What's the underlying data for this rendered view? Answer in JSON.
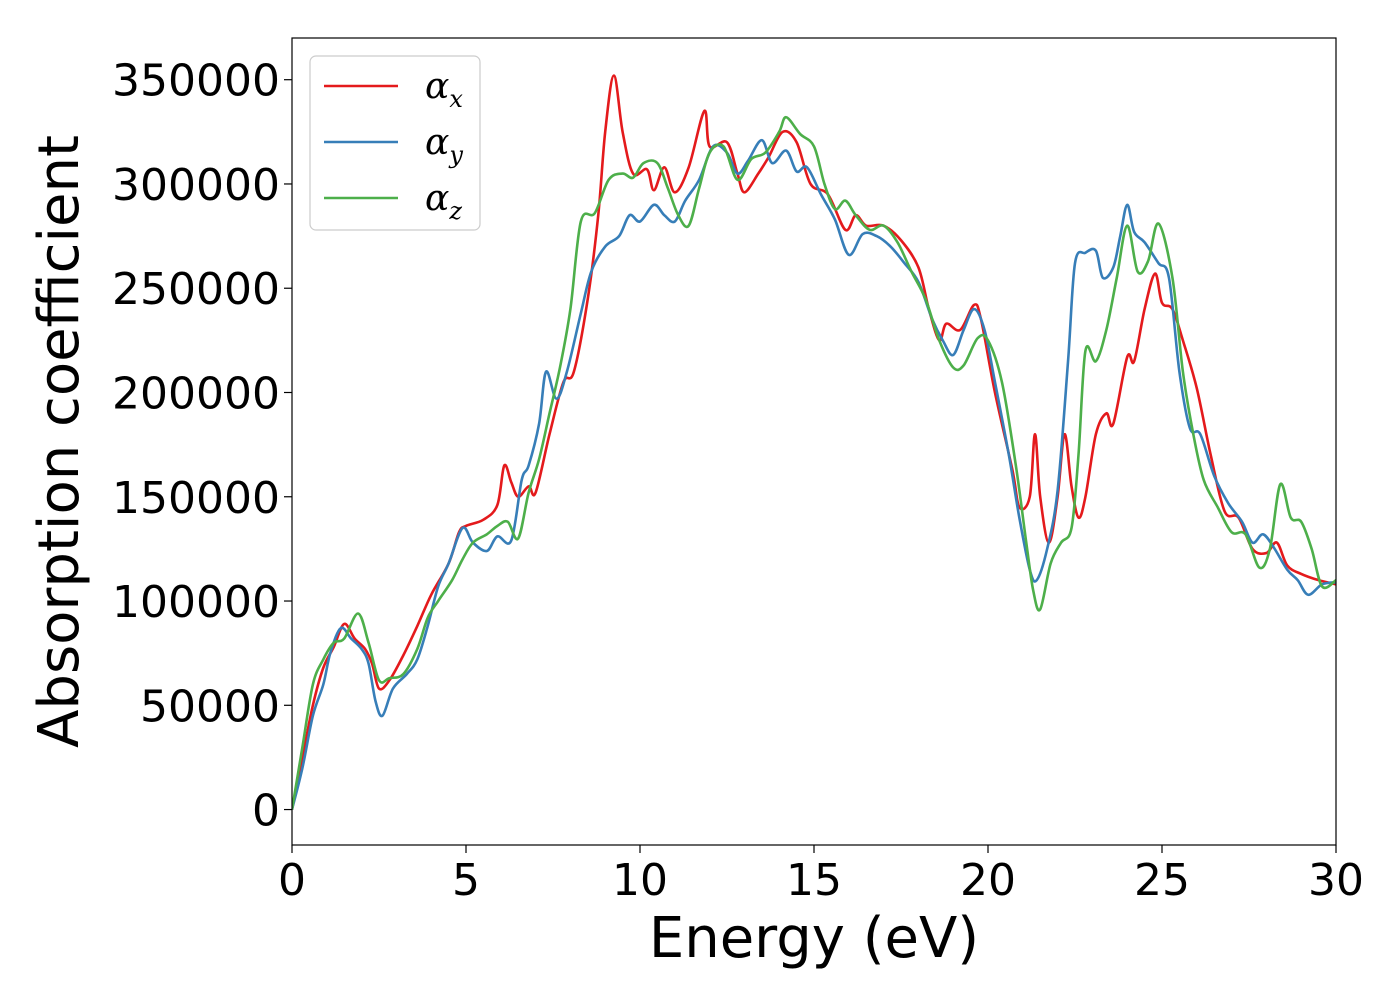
{
  "chart_data": {
    "type": "line",
    "xlabel": "Energy (eV)",
    "ylabel": "Absorption coefficient",
    "xlim": [
      0,
      30
    ],
    "ylim": [
      -17000,
      370000
    ],
    "x_ticks": [
      0,
      5,
      10,
      15,
      20,
      25,
      30
    ],
    "x_tick_labels": [
      "0",
      "5",
      "10",
      "15",
      "20",
      "25",
      "30"
    ],
    "y_ticks": [
      0,
      50000,
      100000,
      150000,
      200000,
      250000,
      300000,
      350000
    ],
    "y_tick_labels": [
      "0",
      "50000",
      "100000",
      "150000",
      "200000",
      "250000",
      "300000",
      "350000"
    ],
    "grid": false,
    "legend_position": "top-left",
    "series": [
      {
        "name": "α",
        "subscript": "x",
        "color": "#e41a1c",
        "points": [
          [
            0,
            0
          ],
          [
            0.3,
            25000
          ],
          [
            0.6,
            50000
          ],
          [
            0.9,
            68000
          ],
          [
            1.2,
            78000
          ],
          [
            1.5,
            89000
          ],
          [
            1.8,
            82000
          ],
          [
            2.1,
            77000
          ],
          [
            2.3,
            70000
          ],
          [
            2.5,
            58000
          ],
          [
            2.8,
            62000
          ],
          [
            3.2,
            74000
          ],
          [
            3.6,
            88000
          ],
          [
            4.0,
            103000
          ],
          [
            4.5,
            118000
          ],
          [
            4.8,
            133000
          ],
          [
            5.0,
            136000
          ],
          [
            5.5,
            139000
          ],
          [
            5.9,
            146000
          ],
          [
            6.1,
            165000
          ],
          [
            6.3,
            157000
          ],
          [
            6.5,
            150000
          ],
          [
            6.8,
            155000
          ],
          [
            7.0,
            152000
          ],
          [
            7.4,
            180000
          ],
          [
            7.8,
            205000
          ],
          [
            8.1,
            210000
          ],
          [
            8.5,
            245000
          ],
          [
            8.8,
            285000
          ],
          [
            9.0,
            325000
          ],
          [
            9.25,
            352000
          ],
          [
            9.5,
            325000
          ],
          [
            9.8,
            305000
          ],
          [
            10.2,
            307000
          ],
          [
            10.4,
            297000
          ],
          [
            10.7,
            308000
          ],
          [
            11.0,
            296000
          ],
          [
            11.4,
            308000
          ],
          [
            11.85,
            335000
          ],
          [
            12.0,
            318000
          ],
          [
            12.5,
            320000
          ],
          [
            12.8,
            305000
          ],
          [
            13.0,
            296000
          ],
          [
            13.4,
            305000
          ],
          [
            13.7,
            313000
          ],
          [
            14.1,
            325000
          ],
          [
            14.5,
            320000
          ],
          [
            14.9,
            300000
          ],
          [
            15.4,
            295000
          ],
          [
            15.9,
            278000
          ],
          [
            16.2,
            285000
          ],
          [
            16.5,
            280000
          ],
          [
            17.0,
            280000
          ],
          [
            17.5,
            273000
          ],
          [
            18.0,
            260000
          ],
          [
            18.3,
            240000
          ],
          [
            18.6,
            225000
          ],
          [
            18.8,
            233000
          ],
          [
            19.2,
            230000
          ],
          [
            19.6,
            242000
          ],
          [
            19.8,
            235000
          ],
          [
            20.2,
            200000
          ],
          [
            20.7,
            163000
          ],
          [
            20.9,
            145000
          ],
          [
            21.2,
            150000
          ],
          [
            21.35,
            180000
          ],
          [
            21.5,
            150000
          ],
          [
            21.75,
            128000
          ],
          [
            22.0,
            150000
          ],
          [
            22.2,
            180000
          ],
          [
            22.4,
            155000
          ],
          [
            22.6,
            140000
          ],
          [
            22.8,
            150000
          ],
          [
            23.1,
            180000
          ],
          [
            23.4,
            190000
          ],
          [
            23.6,
            185000
          ],
          [
            24.0,
            217000
          ],
          [
            24.2,
            215000
          ],
          [
            24.5,
            240000
          ],
          [
            24.8,
            257000
          ],
          [
            25.0,
            243000
          ],
          [
            25.3,
            240000
          ],
          [
            25.6,
            225000
          ],
          [
            26.0,
            202000
          ],
          [
            26.4,
            170000
          ],
          [
            26.8,
            143000
          ],
          [
            27.2,
            140000
          ],
          [
            27.6,
            125000
          ],
          [
            28.0,
            123000
          ],
          [
            28.3,
            128000
          ],
          [
            28.6,
            117000
          ],
          [
            29.0,
            113000
          ],
          [
            29.5,
            110000
          ],
          [
            30.0,
            108000
          ]
        ]
      },
      {
        "name": "α",
        "subscript": "y",
        "color": "#377eb8",
        "points": [
          [
            0,
            0
          ],
          [
            0.3,
            20000
          ],
          [
            0.6,
            45000
          ],
          [
            0.9,
            60000
          ],
          [
            1.1,
            75000
          ],
          [
            1.4,
            87000
          ],
          [
            1.7,
            82000
          ],
          [
            2.0,
            77000
          ],
          [
            2.2,
            70000
          ],
          [
            2.4,
            52000
          ],
          [
            2.6,
            45000
          ],
          [
            2.9,
            58000
          ],
          [
            3.3,
            65000
          ],
          [
            3.6,
            72000
          ],
          [
            3.9,
            88000
          ],
          [
            4.2,
            107000
          ],
          [
            4.5,
            118000
          ],
          [
            4.9,
            135000
          ],
          [
            5.2,
            128000
          ],
          [
            5.6,
            124000
          ],
          [
            5.9,
            131000
          ],
          [
            6.3,
            129000
          ],
          [
            6.6,
            158000
          ],
          [
            6.8,
            165000
          ],
          [
            7.1,
            185000
          ],
          [
            7.3,
            210000
          ],
          [
            7.6,
            197000
          ],
          [
            7.9,
            210000
          ],
          [
            8.3,
            238000
          ],
          [
            8.6,
            258000
          ],
          [
            9.0,
            270000
          ],
          [
            9.4,
            275000
          ],
          [
            9.7,
            285000
          ],
          [
            10.0,
            282000
          ],
          [
            10.4,
            290000
          ],
          [
            10.7,
            285000
          ],
          [
            11.0,
            282000
          ],
          [
            11.3,
            292000
          ],
          [
            11.7,
            302000
          ],
          [
            12.1,
            318000
          ],
          [
            12.5,
            315000
          ],
          [
            12.8,
            305000
          ],
          [
            13.1,
            311000
          ],
          [
            13.5,
            321000
          ],
          [
            13.8,
            310000
          ],
          [
            14.2,
            316000
          ],
          [
            14.5,
            306000
          ],
          [
            14.8,
            308000
          ],
          [
            15.2,
            295000
          ],
          [
            15.6,
            283000
          ],
          [
            16.0,
            266000
          ],
          [
            16.4,
            276000
          ],
          [
            16.8,
            275000
          ],
          [
            17.2,
            270000
          ],
          [
            17.6,
            262000
          ],
          [
            18.0,
            253000
          ],
          [
            18.4,
            235000
          ],
          [
            18.7,
            225000
          ],
          [
            19.0,
            218000
          ],
          [
            19.3,
            230000
          ],
          [
            19.6,
            240000
          ],
          [
            19.9,
            230000
          ],
          [
            20.2,
            205000
          ],
          [
            20.6,
            170000
          ],
          [
            20.9,
            140000
          ],
          [
            21.2,
            115000
          ],
          [
            21.4,
            110000
          ],
          [
            21.7,
            125000
          ],
          [
            22.0,
            153000
          ],
          [
            22.3,
            215000
          ],
          [
            22.5,
            262000
          ],
          [
            22.8,
            267000
          ],
          [
            23.1,
            268000
          ],
          [
            23.3,
            255000
          ],
          [
            23.6,
            260000
          ],
          [
            23.8,
            275000
          ],
          [
            24.0,
            290000
          ],
          [
            24.2,
            277000
          ],
          [
            24.5,
            272000
          ],
          [
            24.9,
            262000
          ],
          [
            25.2,
            255000
          ],
          [
            25.5,
            210000
          ],
          [
            25.8,
            183000
          ],
          [
            26.1,
            180000
          ],
          [
            26.5,
            160000
          ],
          [
            26.9,
            147000
          ],
          [
            27.3,
            138000
          ],
          [
            27.6,
            128000
          ],
          [
            27.9,
            132000
          ],
          [
            28.2,
            126000
          ],
          [
            28.6,
            115000
          ],
          [
            28.9,
            110000
          ],
          [
            29.2,
            103000
          ],
          [
            29.6,
            108000
          ],
          [
            30.0,
            109000
          ]
        ]
      },
      {
        "name": "α",
        "subscript": "z",
        "color": "#4daf4a",
        "points": [
          [
            0,
            0
          ],
          [
            0.3,
            30000
          ],
          [
            0.6,
            60000
          ],
          [
            0.9,
            72000
          ],
          [
            1.2,
            80000
          ],
          [
            1.5,
            82000
          ],
          [
            1.9,
            94000
          ],
          [
            2.2,
            80000
          ],
          [
            2.5,
            62000
          ],
          [
            2.8,
            63000
          ],
          [
            3.2,
            65000
          ],
          [
            3.6,
            77000
          ],
          [
            3.9,
            92000
          ],
          [
            4.2,
            100000
          ],
          [
            4.6,
            110000
          ],
          [
            4.9,
            120000
          ],
          [
            5.2,
            128000
          ],
          [
            5.6,
            132000
          ],
          [
            5.9,
            136000
          ],
          [
            6.2,
            138000
          ],
          [
            6.5,
            130000
          ],
          [
            6.8,
            152000
          ],
          [
            7.1,
            168000
          ],
          [
            7.4,
            190000
          ],
          [
            7.7,
            212000
          ],
          [
            8.0,
            240000
          ],
          [
            8.3,
            282000
          ],
          [
            8.7,
            286000
          ],
          [
            9.1,
            302000
          ],
          [
            9.5,
            305000
          ],
          [
            9.8,
            303000
          ],
          [
            10.1,
            310000
          ],
          [
            10.5,
            310000
          ],
          [
            10.8,
            298000
          ],
          [
            11.1,
            285000
          ],
          [
            11.4,
            280000
          ],
          [
            11.7,
            298000
          ],
          [
            12.0,
            315000
          ],
          [
            12.4,
            318000
          ],
          [
            12.8,
            302000
          ],
          [
            13.2,
            312000
          ],
          [
            13.6,
            315000
          ],
          [
            14.0,
            325000
          ],
          [
            14.2,
            332000
          ],
          [
            14.6,
            324000
          ],
          [
            15.0,
            318000
          ],
          [
            15.3,
            300000
          ],
          [
            15.6,
            288000
          ],
          [
            15.9,
            292000
          ],
          [
            16.2,
            285000
          ],
          [
            16.6,
            278000
          ],
          [
            17.0,
            280000
          ],
          [
            17.4,
            272000
          ],
          [
            17.8,
            258000
          ],
          [
            18.2,
            245000
          ],
          [
            18.6,
            225000
          ],
          [
            19.0,
            212000
          ],
          [
            19.3,
            213000
          ],
          [
            19.7,
            226000
          ],
          [
            20.0,
            225000
          ],
          [
            20.4,
            205000
          ],
          [
            20.8,
            165000
          ],
          [
            21.1,
            128000
          ],
          [
            21.3,
            105000
          ],
          [
            21.5,
            96000
          ],
          [
            21.8,
            118000
          ],
          [
            22.1,
            128000
          ],
          [
            22.4,
            135000
          ],
          [
            22.6,
            170000
          ],
          [
            22.8,
            220000
          ],
          [
            23.1,
            215000
          ],
          [
            23.4,
            230000
          ],
          [
            23.7,
            255000
          ],
          [
            24.0,
            280000
          ],
          [
            24.3,
            258000
          ],
          [
            24.6,
            263000
          ],
          [
            24.9,
            281000
          ],
          [
            25.3,
            255000
          ],
          [
            25.6,
            210000
          ],
          [
            25.9,
            180000
          ],
          [
            26.2,
            158000
          ],
          [
            26.6,
            145000
          ],
          [
            27.0,
            133000
          ],
          [
            27.4,
            132000
          ],
          [
            27.8,
            116000
          ],
          [
            28.1,
            125000
          ],
          [
            28.4,
            156000
          ],
          [
            28.7,
            140000
          ],
          [
            29.0,
            138000
          ],
          [
            29.3,
            125000
          ],
          [
            29.6,
            107000
          ],
          [
            30.0,
            110000
          ]
        ]
      }
    ]
  }
}
